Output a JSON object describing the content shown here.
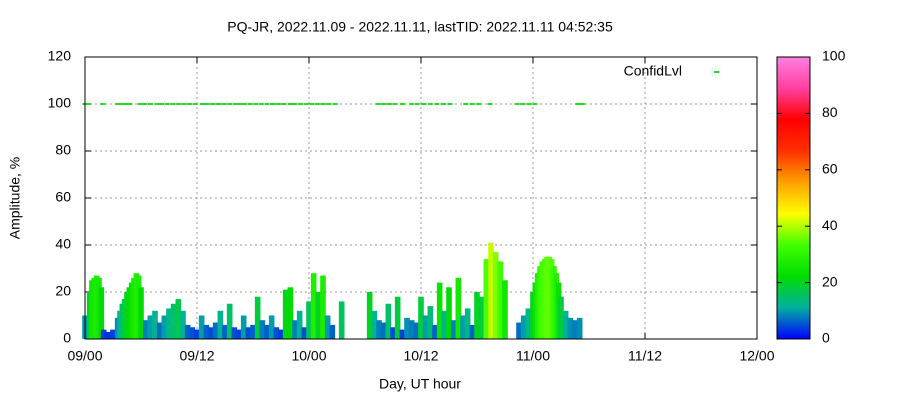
{
  "chart_data": {
    "type": "impulse",
    "title": "PQ-JR, 2022.11.09 - 2022.11.11, lastTID: 2022.11.11 04:52:35",
    "xlabel": "Day, UT hour",
    "ylabel": "Amplitude, %",
    "xlim": [
      0,
      72
    ],
    "xticks": [
      {
        "value": 0,
        "label": "09/00"
      },
      {
        "value": 12,
        "label": "09/12"
      },
      {
        "value": 24,
        "label": "10/00"
      },
      {
        "value": 36,
        "label": "10/12"
      },
      {
        "value": 48,
        "label": "11/00"
      },
      {
        "value": 60,
        "label": "11/12"
      },
      {
        "value": 72,
        "label": "12/00"
      }
    ],
    "ylim": [
      0,
      120
    ],
    "yticks": [
      0,
      20,
      40,
      60,
      80,
      100,
      120
    ],
    "grid": true,
    "legend": "top-right",
    "colorbar": {
      "lim": [
        0,
        100
      ],
      "ticks": [
        0,
        20,
        40,
        60,
        80,
        100
      ],
      "palette": [
        "#0000ff",
        "#00b0a0",
        "#00dd00",
        "#40ff00",
        "#ffff00",
        "#ffa000",
        "#ff3000",
        "#ff0000",
        "#ff40a0",
        "#ff80e0"
      ]
    },
    "series": [
      {
        "name": "Amplitude",
        "x": [
          0,
          0.25,
          0.5,
          0.75,
          1,
          1.25,
          1.5,
          1.75,
          2,
          2.5,
          3,
          3.5,
          3.75,
          4,
          4.25,
          4.5,
          4.75,
          5,
          5.25,
          5.5,
          5.75,
          6,
          6.5,
          7,
          7.5,
          8,
          8.5,
          9,
          9.5,
          10,
          10.5,
          11,
          11.5,
          12,
          12.5,
          13,
          13.5,
          14,
          14.5,
          15,
          15.5,
          16,
          16.5,
          17,
          17.5,
          18,
          18.5,
          19,
          19.5,
          20,
          20.5,
          21,
          21.5,
          22,
          22.5,
          23,
          23.5,
          24,
          24.5,
          25,
          25.5,
          26,
          26.5,
          27.5,
          30.5,
          31,
          31.5,
          32,
          32.5,
          33,
          33.5,
          34,
          34.5,
          35,
          35.5,
          36,
          36.5,
          37,
          37.5,
          38,
          38.5,
          39,
          39.5,
          40,
          40.5,
          41,
          41.5,
          42,
          42.5,
          43,
          43.5,
          44,
          44.5,
          45,
          46.5,
          47,
          47.5,
          48,
          48.25,
          48.5,
          48.75,
          49,
          49.25,
          49.5,
          49.75,
          50,
          50.25,
          50.5,
          50.75,
          51,
          51.5,
          52,
          52.5,
          53
        ],
        "values": [
          10,
          9,
          20,
          25,
          26,
          27,
          26,
          22,
          4,
          3,
          4,
          9,
          12,
          15,
          17,
          20,
          22,
          24,
          26,
          28,
          27,
          22,
          8,
          10,
          12,
          7,
          10,
          13,
          15,
          17,
          12,
          6,
          5,
          4,
          10,
          6,
          5,
          7,
          12,
          6,
          15,
          5,
          4,
          10,
          5,
          6,
          18,
          8,
          6,
          10,
          5,
          4,
          21,
          22,
          8,
          12,
          5,
          16,
          28,
          20,
          27,
          10,
          6,
          16,
          20,
          12,
          8,
          7,
          15,
          5,
          18,
          4,
          9,
          8,
          7,
          18,
          10,
          14,
          6,
          24,
          12,
          22,
          8,
          26,
          10,
          13,
          6,
          20,
          18,
          34,
          41,
          37,
          33,
          25,
          7,
          10,
          13,
          20,
          24,
          28,
          31,
          33,
          34,
          35,
          35,
          34,
          31,
          28,
          24,
          18,
          12,
          9,
          8,
          9
        ]
      },
      {
        "name": "ConfidLvl",
        "color": "#22dd22",
        "x": [
          0,
          0.3,
          1.9,
          3.5,
          3.9,
          4.3,
          4.8,
          5.9,
          6.4,
          7.0,
          7.7,
          8.2,
          8.8,
          9.4,
          10.0,
          10.6,
          11.2,
          11.8,
          12.6,
          13.1,
          13.7,
          14.3,
          14.9,
          15.5,
          16.1,
          16.6,
          17.1,
          17.7,
          18.3,
          18.9,
          19.5,
          20.1,
          20.7,
          21.3,
          22.0,
          22.5,
          23.1,
          23.7,
          24.3,
          24.9,
          25.5,
          26.1,
          26.8,
          31.4,
          32.0,
          32.6,
          33.2,
          34.0,
          35.0,
          35.6,
          36.3,
          37.0,
          37.7,
          38.4,
          39.1,
          40.8,
          41.5,
          42.2,
          43.4,
          46.3,
          46.9,
          47.6,
          48.2,
          52.8,
          53.3
        ],
        "values": [
          100,
          100,
          100,
          100,
          100,
          100,
          100,
          100,
          100,
          100,
          100,
          100,
          100,
          100,
          100,
          100,
          100,
          100,
          100,
          100,
          100,
          100,
          100,
          100,
          100,
          100,
          100,
          100,
          100,
          100,
          100,
          100,
          100,
          100,
          100,
          100,
          100,
          100,
          100,
          100,
          100,
          100,
          100,
          100,
          100,
          100,
          100,
          100,
          100,
          100,
          100,
          100,
          100,
          100,
          100,
          100,
          100,
          100,
          100,
          100,
          100,
          100,
          100,
          100,
          100
        ]
      }
    ]
  }
}
